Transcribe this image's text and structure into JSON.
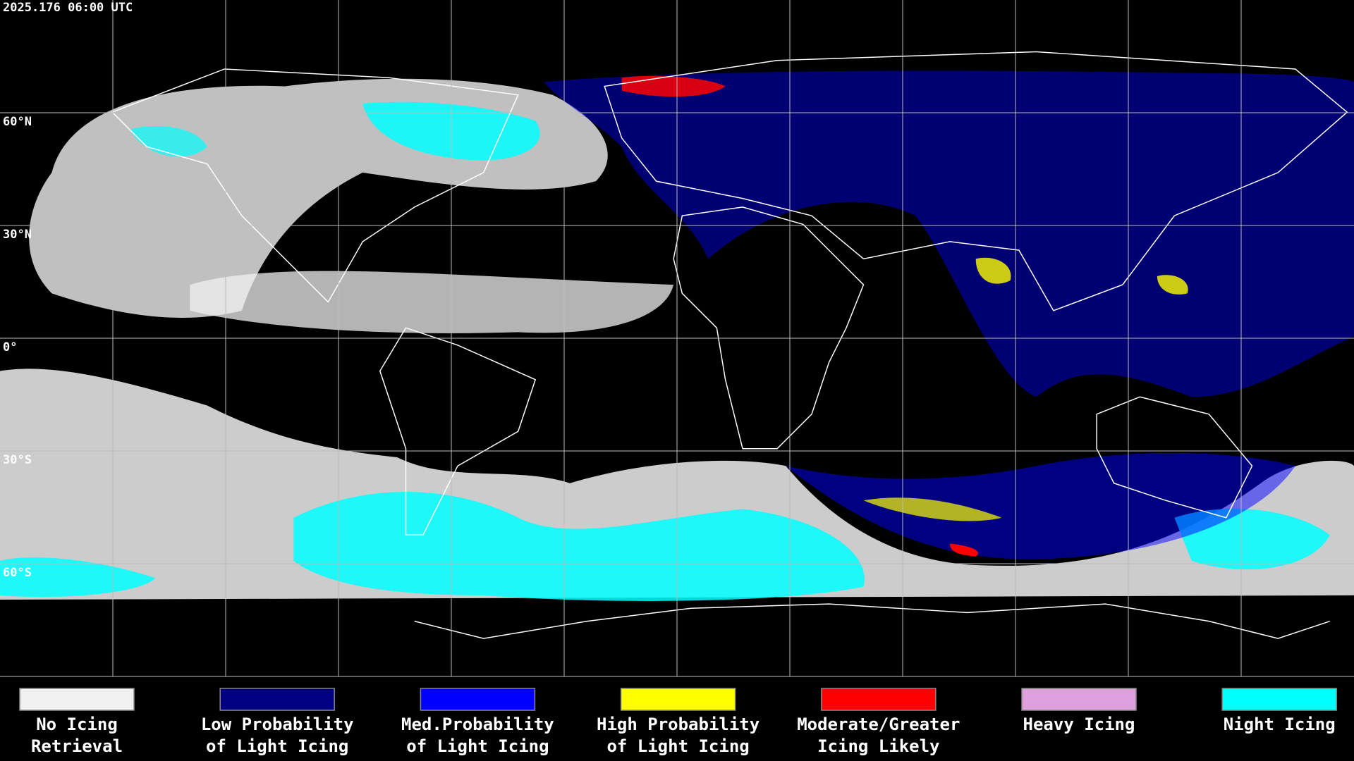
{
  "header": {
    "timestamp": "2025.176 06:00 UTC"
  },
  "map": {
    "latitude_lines": [
      {
        "value": 60,
        "label": "60°N"
      },
      {
        "value": 30,
        "label": "30°N"
      },
      {
        "value": 0,
        "label": "0°"
      },
      {
        "value": -30,
        "label": "30°S"
      },
      {
        "value": -60,
        "label": "60°S"
      }
    ]
  },
  "legend": {
    "items": [
      {
        "label": [
          "No Icing",
          "Retrieval"
        ],
        "color": "#f0f0f0"
      },
      {
        "label": [
          "Low Probability",
          "of Light Icing"
        ],
        "color": "#000080"
      },
      {
        "label": [
          "Med.Probability",
          "of Light Icing"
        ],
        "color": "#0000ff"
      },
      {
        "label": [
          "High Probability",
          "of Light Icing"
        ],
        "color": "#ffff00"
      },
      {
        "label": [
          "Moderate/Greater",
          "Icing Likely"
        ],
        "color": "#ff0000"
      },
      {
        "label": [
          "Heavy Icing"
        ],
        "color": "#dda0dd"
      },
      {
        "label": [
          "Night Icing"
        ],
        "color": "#00ffff"
      }
    ]
  }
}
